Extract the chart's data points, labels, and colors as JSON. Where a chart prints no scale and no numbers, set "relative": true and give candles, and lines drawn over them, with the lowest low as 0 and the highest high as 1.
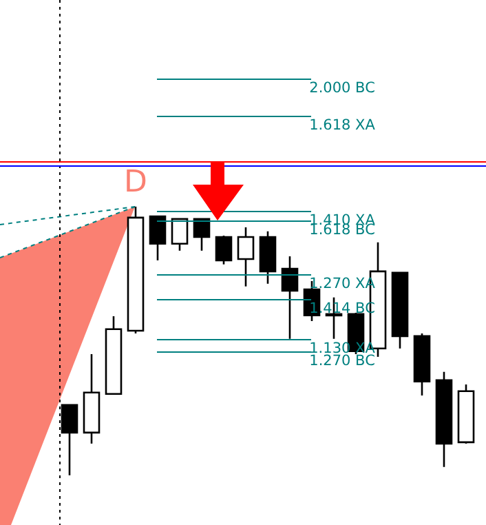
{
  "chart_data": {
    "type": "candlestick",
    "relative": true,
    "legend": false,
    "categories": [
      null,
      null,
      null,
      null,
      null,
      null,
      null,
      null,
      null,
      null,
      null,
      null,
      null,
      null,
      null,
      null,
      null,
      null,
      null
    ],
    "ohlc": [
      [
        0.262,
        0.262,
        0,
        0.159
      ],
      [
        0.159,
        0.451,
        0.118,
        0.308
      ],
      [
        0.303,
        0.592,
        0.303,
        0.544
      ],
      [
        0.538,
        1,
        0.528,
        0.959
      ],
      [
        0.964,
        0.964,
        0.8,
        0.862
      ],
      [
        0.862,
        0.954,
        0.836,
        0.954
      ],
      [
        0.954,
        0.954,
        0.836,
        0.887
      ],
      [
        0.887,
        0.892,
        0.785,
        0.8
      ],
      [
        0.805,
        0.923,
        0.703,
        0.887
      ],
      [
        0.887,
        0.908,
        0.713,
        0.759
      ],
      [
        0.769,
        0.815,
        0.508,
        0.687
      ],
      [
        0.692,
        0.723,
        0.574,
        0.595
      ],
      [
        0.6,
        0.662,
        0.508,
        0.597
      ],
      [
        0.6,
        0.605,
        0.451,
        0.462
      ],
      [
        0.472,
        0.867,
        0.441,
        0.759
      ],
      [
        0.754,
        0.754,
        0.472,
        0.518
      ],
      [
        0.518,
        0.528,
        0.297,
        0.349
      ],
      [
        0.354,
        0.385,
        0.031,
        0.118
      ],
      [
        0.123,
        0.338,
        0.118,
        0.313
      ]
    ],
    "annotations": [
      "D"
    ],
    "ref_lines": [
      {
        "axis": "y",
        "value": 1.477,
        "label": "2.000 BC",
        "color": "#008080"
      },
      {
        "axis": "y",
        "value": 1.338,
        "label": "1.618 XA",
        "color": "#008080"
      },
      {
        "axis": "y",
        "value": 1.169,
        "color": "#ff0000"
      },
      {
        "axis": "y",
        "value": 1.154,
        "color": "#0000ff"
      },
      {
        "axis": "y",
        "value": 0.985,
        "label": "1.410 XA",
        "color": "#008080"
      },
      {
        "axis": "y",
        "value": 0.949,
        "label": "1.618 BC",
        "color": "#008080"
      },
      {
        "axis": "y",
        "value": 0.749,
        "label": "1.270 XA",
        "color": "#008080"
      },
      {
        "axis": "y",
        "value": 0.656,
        "label": "1.414 BC",
        "color": "#008080"
      },
      {
        "axis": "y",
        "value": 0.508,
        "label": "1.130 XA",
        "color": "#008080"
      },
      {
        "axis": "y",
        "value": 0.462,
        "label": "1.270 BC",
        "color": "#008080"
      }
    ]
  }
}
